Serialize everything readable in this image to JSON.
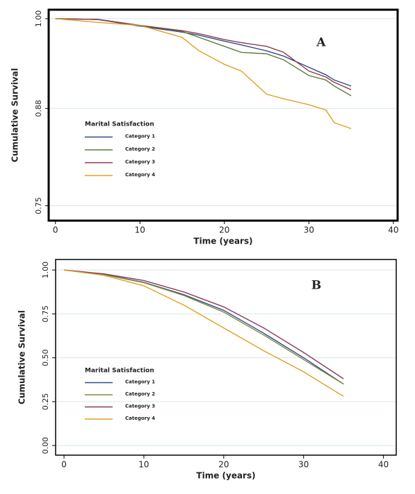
{
  "chart_data": [
    {
      "type": "line",
      "annotation": "A",
      "xlabel": "Time (years)",
      "ylabel": "Cumulative Survival",
      "legend_title": "Marital Satisfaction",
      "x": [
        0,
        5,
        10,
        15,
        17,
        20,
        22,
        25,
        27,
        30,
        32,
        33,
        35
      ],
      "series": [
        {
          "name": "Category 1",
          "color": "#2e4a8a",
          "values": [
            1,
            0.999,
            0.99,
            0.982,
            0.978,
            0.97,
            0.965,
            0.957,
            0.95,
            0.935,
            0.925,
            0.918,
            0.91
          ]
        },
        {
          "name": "Category 2",
          "color": "#5a7a3a",
          "values": [
            1,
            0.999,
            0.991,
            0.983,
            0.975,
            0.963,
            0.955,
            0.953,
            0.945,
            0.924,
            0.918,
            0.91,
            0.897
          ]
        },
        {
          "name": "Category 3",
          "color": "#8b3a4a",
          "values": [
            1,
            0.999,
            0.991,
            0.984,
            0.98,
            0.972,
            0.968,
            0.963,
            0.955,
            0.93,
            0.922,
            0.915,
            0.905
          ]
        },
        {
          "name": "Category 4",
          "color": "#e0a020",
          "values": [
            1,
            0.995,
            0.991,
            0.975,
            0.957,
            0.939,
            0.93,
            0.899,
            0.893,
            0.885,
            0.878,
            0.861,
            0.853
          ]
        }
      ],
      "xlim": [
        -0.8,
        40.5
      ],
      "xticks": [
        0,
        10,
        20,
        30,
        40
      ],
      "ylim": [
        0.73,
        1.012
      ],
      "yticks": [
        0.75,
        0.88,
        {
          "value": 1,
          "label": "1.00"
        }
      ],
      "grid": true
    },
    {
      "type": "line",
      "annotation": "B",
      "xlabel": "Time (years)",
      "ylabel": "Cumulative Survival",
      "legend_title": "Marital Satisfaction",
      "x": [
        0,
        5,
        10,
        15,
        20,
        25,
        30,
        35
      ],
      "series": [
        {
          "name": "Category 1",
          "color": "#2e4a8a",
          "values": [
            1,
            0.975,
            0.93,
            0.86,
            0.77,
            0.64,
            0.5,
            0.35
          ]
        },
        {
          "name": "Category 2",
          "color": "#7a8a3a",
          "values": [
            1,
            0.974,
            0.928,
            0.855,
            0.76,
            0.63,
            0.49,
            0.35
          ]
        },
        {
          "name": "Category 3",
          "color": "#8b3a5a",
          "values": [
            1,
            0.978,
            0.94,
            0.875,
            0.79,
            0.67,
            0.53,
            0.38
          ]
        },
        {
          "name": "Category 4",
          "color": "#e0a020",
          "values": [
            1,
            0.97,
            0.91,
            0.8,
            0.67,
            0.54,
            0.42,
            0.28
          ]
        }
      ],
      "xlim": [
        -1.05,
        41.6
      ],
      "xticks": [
        0,
        10,
        20,
        30,
        40
      ],
      "ylim": [
        -0.055,
        1.06
      ],
      "yticks": [
        {
          "value": 0,
          "label": "0.00"
        },
        0.25,
        {
          "value": 0.5,
          "label": "0.50"
        },
        0.75,
        {
          "value": 1,
          "label": "1.00"
        }
      ],
      "grid": true
    }
  ]
}
